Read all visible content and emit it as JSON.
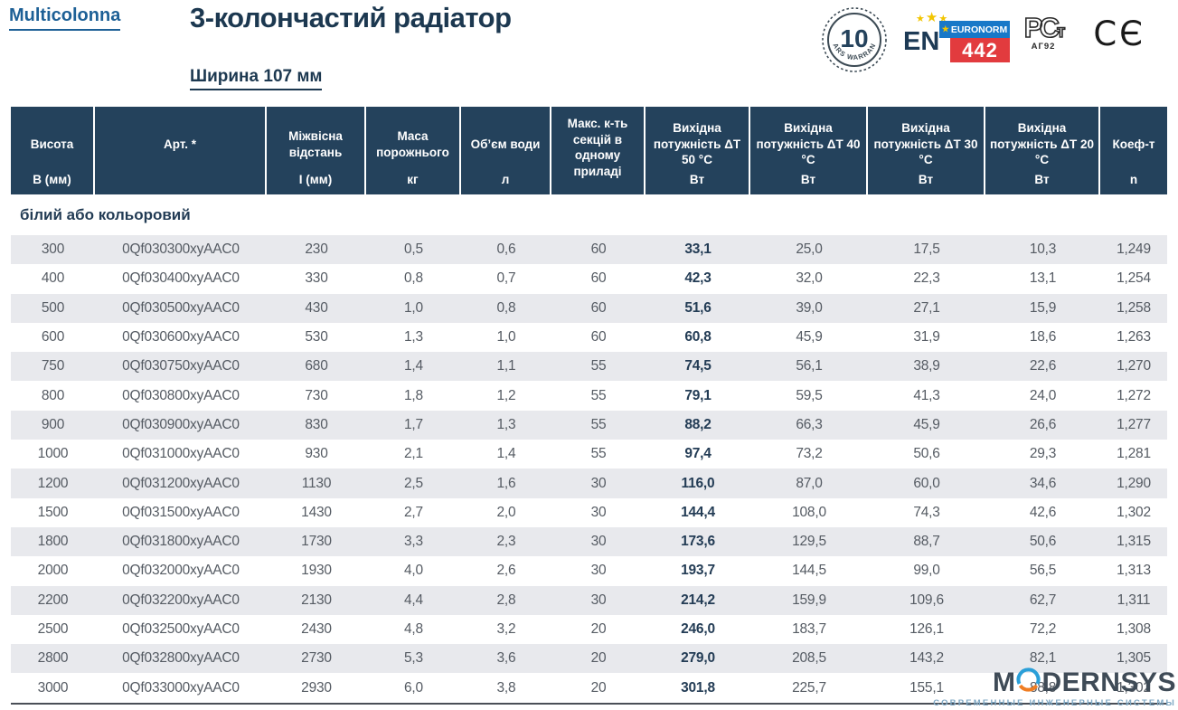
{
  "header": {
    "brand": "Multicolonna",
    "title": "3-колончастий радіатор",
    "subtitle": "Ширина 107 мм"
  },
  "badges": {
    "warranty": {
      "number": "10",
      "text": "YEARS WARRANTY"
    },
    "euronorm": {
      "en": "EN",
      "stars": "★★★",
      "label": "EURONORM",
      "star": "★",
      "number": "442"
    },
    "rostest": {
      "mark_main": "РС",
      "mark_small": "т",
      "code": "АГ92"
    },
    "ce": "CЄ"
  },
  "colors": {
    "header_bg": "#24425c",
    "title_text": "#1c3850",
    "brand_blue": "#1d6096",
    "zebra_gray": "#e8e9ed",
    "cell_text": "#555b63",
    "power_bold": "#233c55",
    "euronorm_blue": "#1878c8",
    "euronorm_red": "#e23b3e",
    "star_yellow": "#f2c500",
    "watermark_text": "#3f4b57",
    "watermark_tagline": "#7fa8c4",
    "watermark_ring_blue": "#2a9fd8",
    "watermark_ring_orange": "#ef7d23"
  },
  "table": {
    "columns": [
      {
        "label": "Висота",
        "unit": "В (мм)"
      },
      {
        "label": "Арт. *",
        "unit": ""
      },
      {
        "label": "Міжвісна відстань",
        "unit": "I (мм)"
      },
      {
        "label": "Маса порожнього",
        "unit": "кг"
      },
      {
        "label": "Об’єм води",
        "unit": "л"
      },
      {
        "label": "Макс. к-ть секцій в одному приладі",
        "unit": ""
      },
      {
        "label": "Вихідна потужність ΔT 50 °C",
        "unit": "Вт"
      },
      {
        "label": "Вихідна потужність ΔT 40 °C",
        "unit": "Вт"
      },
      {
        "label": "Вихідна потужність ΔT 30 °C",
        "unit": "Вт"
      },
      {
        "label": "Вихідна потужність ΔT 20 °C",
        "unit": "Вт"
      },
      {
        "label": "Коеф-т",
        "unit": "n"
      }
    ],
    "section_label": "білий або кольоровий",
    "rows": [
      [
        "300",
        "0Qf030300xyAAC0",
        "230",
        "0,5",
        "0,6",
        "60",
        "33,1",
        "25,0",
        "17,5",
        "10,3",
        "1,249"
      ],
      [
        "400",
        "0Qf030400xyAAC0",
        "330",
        "0,8",
        "0,7",
        "60",
        "42,3",
        "32,0",
        "22,3",
        "13,1",
        "1,254"
      ],
      [
        "500",
        "0Qf030500xyAAC0",
        "430",
        "1,0",
        "0,8",
        "60",
        "51,6",
        "39,0",
        "27,1",
        "15,9",
        "1,258"
      ],
      [
        "600",
        "0Qf030600xyAAC0",
        "530",
        "1,3",
        "1,0",
        "60",
        "60,8",
        "45,9",
        "31,9",
        "18,6",
        "1,263"
      ],
      [
        "750",
        "0Qf030750xyAAC0",
        "680",
        "1,4",
        "1,1",
        "55",
        "74,5",
        "56,1",
        "38,9",
        "22,6",
        "1,270"
      ],
      [
        "800",
        "0Qf030800xyAAC0",
        "730",
        "1,8",
        "1,2",
        "55",
        "79,1",
        "59,5",
        "41,3",
        "24,0",
        "1,272"
      ],
      [
        "900",
        "0Qf030900xyAAC0",
        "830",
        "1,7",
        "1,3",
        "55",
        "88,2",
        "66,3",
        "45,9",
        "26,6",
        "1,277"
      ],
      [
        "1000",
        "0Qf031000xyAAC0",
        "930",
        "2,1",
        "1,4",
        "55",
        "97,4",
        "73,2",
        "50,6",
        "29,3",
        "1,281"
      ],
      [
        "1200",
        "0Qf031200xyAAC0",
        "1130",
        "2,5",
        "1,6",
        "30",
        "116,0",
        "87,0",
        "60,0",
        "34,6",
        "1,290"
      ],
      [
        "1500",
        "0Qf031500xyAAC0",
        "1430",
        "2,7",
        "2,0",
        "30",
        "144,4",
        "108,0",
        "74,3",
        "42,6",
        "1,302"
      ],
      [
        "1800",
        "0Qf031800xyAAC0",
        "1730",
        "3,3",
        "2,3",
        "30",
        "173,6",
        "129,5",
        "88,7",
        "50,6",
        "1,315"
      ],
      [
        "2000",
        "0Qf032000xyAAC0",
        "1930",
        "4,0",
        "2,6",
        "30",
        "193,7",
        "144,5",
        "99,0",
        "56,5",
        "1,313"
      ],
      [
        "2200",
        "0Qf032200xyAAC0",
        "2130",
        "4,4",
        "2,8",
        "30",
        "214,2",
        "159,9",
        "109,6",
        "62,7",
        "1,311"
      ],
      [
        "2500",
        "0Qf032500xyAAC0",
        "2430",
        "4,8",
        "3,2",
        "20",
        "246,0",
        "183,7",
        "126,1",
        "72,2",
        "1,308"
      ],
      [
        "2800",
        "0Qf032800xyAAC0",
        "2730",
        "5,3",
        "3,6",
        "20",
        "279,0",
        "208,5",
        "143,2",
        "82,1",
        "1,305"
      ],
      [
        "3000",
        "0Qf033000xyAAC0",
        "2930",
        "6,0",
        "3,8",
        "20",
        "301,8",
        "225,7",
        "155,1",
        "88,8",
        "1,302"
      ]
    ]
  },
  "watermark": {
    "name_left": "M",
    "name_right": "DERNSYS",
    "tagline": "СОВРЕМЕННЫЕ ИНЖЕНЕРНЫЕ СИСТЕМЫ"
  }
}
